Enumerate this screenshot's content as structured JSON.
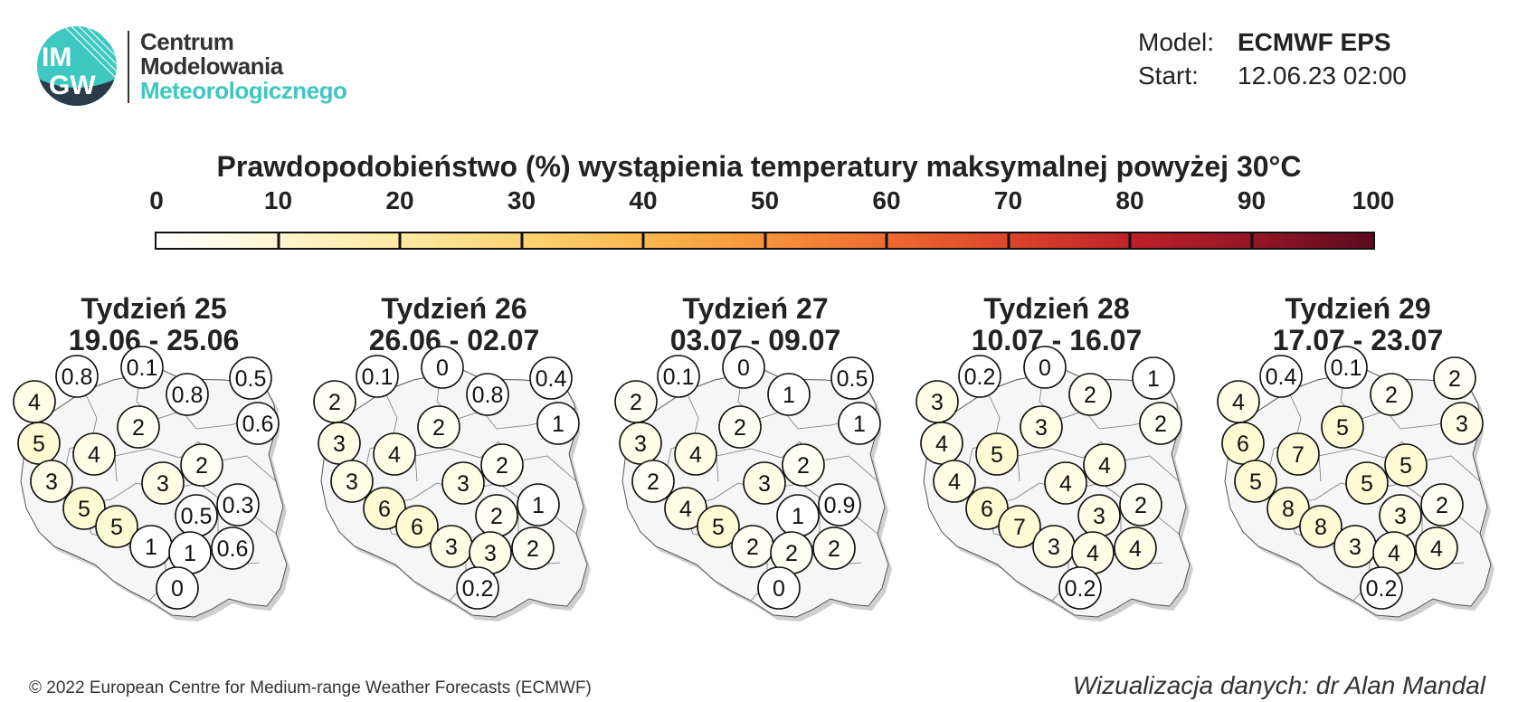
{
  "logo": {
    "circle_text_1": "IM",
    "circle_text_2": "GW",
    "line1": "Centrum",
    "line2": "Modelowania",
    "line3": "Meteorologicznego",
    "teal": "#3ec7c0"
  },
  "meta": {
    "model_label": "Model:",
    "model_value": "ECMWF EPS",
    "start_label": "Start:",
    "start_value": "12.06.23 02:00"
  },
  "title": "Prawdopodobieństwo (%) wystąpienia temperatury maksymalnej powyżej 30°C",
  "colorbar": {
    "ticks": [
      "0",
      "10",
      "20",
      "30",
      "40",
      "50",
      "60",
      "70",
      "80",
      "90",
      "100"
    ],
    "range": [
      0,
      100
    ],
    "colors": [
      "#ffffff",
      "#fff2c0",
      "#fbcf6b",
      "#f48c37",
      "#d9412b",
      "#901525",
      "#5c0b20"
    ]
  },
  "weeks": [
    {
      "title": "Tydzień 25",
      "dates": "19.06 - 25.06",
      "values": [
        "0.8",
        "0.1",
        "0.8",
        "0.5",
        "4",
        "0.6",
        "2",
        "5",
        "4",
        "2",
        "3",
        "3",
        "0.5",
        "0.3",
        "5",
        "5",
        "1",
        "1",
        "0.6",
        "0"
      ]
    },
    {
      "title": "Tydzień 26",
      "dates": "26.06 - 02.07",
      "values": [
        "0.1",
        "0",
        "0.8",
        "0.4",
        "2",
        "1",
        "2",
        "3",
        "4",
        "2",
        "3",
        "3",
        "2",
        "1",
        "6",
        "6",
        "3",
        "3",
        "2",
        "0.2"
      ]
    },
    {
      "title": "Tydzień 27",
      "dates": "03.07 - 09.07",
      "values": [
        "0.1",
        "0",
        "1",
        "0.5",
        "2",
        "1",
        "2",
        "3",
        "4",
        "2",
        "2",
        "3",
        "1",
        "0.9",
        "4",
        "5",
        "2",
        "2",
        "2",
        "0"
      ]
    },
    {
      "title": "Tydzień 28",
      "dates": "10.07 - 16.07",
      "values": [
        "0.2",
        "0",
        "2",
        "1",
        "3",
        "2",
        "3",
        "4",
        "5",
        "4",
        "4",
        "4",
        "3",
        "2",
        "6",
        "7",
        "3",
        "4",
        "4",
        "0.2"
      ]
    },
    {
      "title": "Tydzień 29",
      "dates": "17.07 - 23.07",
      "values": [
        "0.4",
        "0.1",
        "2",
        "2",
        "4",
        "3",
        "5",
        "6",
        "7",
        "5",
        "5",
        "5",
        "3",
        "2",
        "8",
        "8",
        "3",
        "4",
        "4",
        "0.2"
      ]
    }
  ],
  "footer": {
    "copyright": "© 2022 European Centre for Medium-range Weather Forecasts (ECMWF)",
    "credit": "Wizualizacja danych: dr Alan Mandal"
  }
}
